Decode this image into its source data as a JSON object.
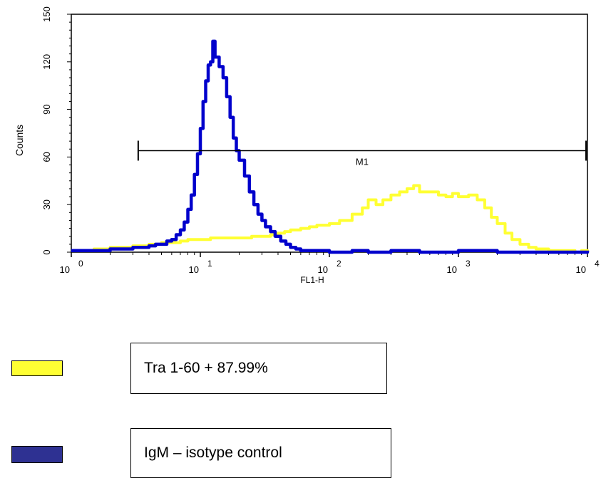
{
  "chart_data": {
    "type": "line",
    "xscale": "log",
    "xlim": [
      1,
      10000
    ],
    "ylim": [
      0,
      150
    ],
    "xlabel": "FL1-H",
    "ylabel": "Counts",
    "x_ticks": [
      {
        "base": "10",
        "exp": "0"
      },
      {
        "base": "10",
        "exp": "1"
      },
      {
        "base": "10",
        "exp": "2"
      },
      {
        "base": "10",
        "exp": "3"
      },
      {
        "base": "10",
        "exp": "4"
      }
    ],
    "y_ticks": [
      "0",
      "30",
      "60",
      "90",
      "120",
      "150"
    ],
    "marker": {
      "label": "M1",
      "x_start": 3.3,
      "x_end": 10000,
      "y": 64
    },
    "series": [
      {
        "name": "Tra 1-60 + 87.99%",
        "color": "#ffff33",
        "points": [
          [
            1,
            1
          ],
          [
            1.5,
            2
          ],
          [
            2,
            3
          ],
          [
            3,
            4
          ],
          [
            4,
            5
          ],
          [
            5,
            6
          ],
          [
            6,
            6
          ],
          [
            7,
            7
          ],
          [
            8,
            8
          ],
          [
            10,
            8
          ],
          [
            12,
            9
          ],
          [
            15,
            9
          ],
          [
            20,
            9
          ],
          [
            25,
            10
          ],
          [
            30,
            10
          ],
          [
            35,
            11
          ],
          [
            40,
            12
          ],
          [
            45,
            13
          ],
          [
            50,
            14
          ],
          [
            60,
            15
          ],
          [
            70,
            16
          ],
          [
            80,
            17
          ],
          [
            100,
            18
          ],
          [
            120,
            20
          ],
          [
            150,
            24
          ],
          [
            180,
            28
          ],
          [
            200,
            33
          ],
          [
            230,
            30
          ],
          [
            260,
            33
          ],
          [
            300,
            36
          ],
          [
            350,
            38
          ],
          [
            400,
            40
          ],
          [
            450,
            42
          ],
          [
            500,
            38
          ],
          [
            600,
            38
          ],
          [
            700,
            36
          ],
          [
            800,
            35
          ],
          [
            900,
            37
          ],
          [
            1000,
            35
          ],
          [
            1200,
            36
          ],
          [
            1400,
            33
          ],
          [
            1600,
            28
          ],
          [
            1800,
            22
          ],
          [
            2000,
            18
          ],
          [
            2300,
            12
          ],
          [
            2600,
            8
          ],
          [
            3000,
            5
          ],
          [
            3500,
            3
          ],
          [
            4000,
            2
          ],
          [
            5000,
            1
          ],
          [
            6000,
            1
          ],
          [
            7000,
            1
          ],
          [
            8000,
            0
          ],
          [
            9000,
            1
          ],
          [
            10000,
            0
          ]
        ]
      },
      {
        "name": "IgM – isotype control",
        "color": "#0000cc",
        "points": [
          [
            1,
            1
          ],
          [
            1.3,
            1
          ],
          [
            1.7,
            1
          ],
          [
            2,
            2
          ],
          [
            2.5,
            2
          ],
          [
            3,
            3
          ],
          [
            3.5,
            3
          ],
          [
            4,
            4
          ],
          [
            4.5,
            5
          ],
          [
            5,
            5
          ],
          [
            5.5,
            7
          ],
          [
            6,
            8
          ],
          [
            6.5,
            11
          ],
          [
            7,
            14
          ],
          [
            7.5,
            19
          ],
          [
            8,
            27
          ],
          [
            8.5,
            36
          ],
          [
            9,
            49
          ],
          [
            9.5,
            62
          ],
          [
            10,
            78
          ],
          [
            10.5,
            95
          ],
          [
            11,
            108
          ],
          [
            11.5,
            118
          ],
          [
            12,
            120
          ],
          [
            12.5,
            133
          ],
          [
            13,
            123
          ],
          [
            14,
            117
          ],
          [
            15,
            110
          ],
          [
            16,
            98
          ],
          [
            17,
            85
          ],
          [
            18,
            72
          ],
          [
            19,
            64
          ],
          [
            20,
            58
          ],
          [
            22,
            48
          ],
          [
            24,
            38
          ],
          [
            26,
            30
          ],
          [
            28,
            24
          ],
          [
            30,
            20
          ],
          [
            32,
            16
          ],
          [
            35,
            13
          ],
          [
            38,
            10
          ],
          [
            42,
            7
          ],
          [
            46,
            5
          ],
          [
            50,
            3
          ],
          [
            55,
            2
          ],
          [
            60,
            1
          ],
          [
            70,
            1
          ],
          [
            80,
            1
          ],
          [
            100,
            0
          ],
          [
            150,
            1
          ],
          [
            200,
            0
          ],
          [
            300,
            1
          ],
          [
            500,
            0
          ],
          [
            1000,
            1
          ],
          [
            2000,
            0
          ],
          [
            5000,
            0
          ],
          [
            10000,
            1
          ]
        ]
      }
    ]
  },
  "legend": [
    {
      "label": "Tra 1-60 + 87.99%",
      "swatch_color": "#ffff33"
    },
    {
      "label": "IgM – isotype control",
      "swatch_color": "#2e3192"
    }
  ]
}
